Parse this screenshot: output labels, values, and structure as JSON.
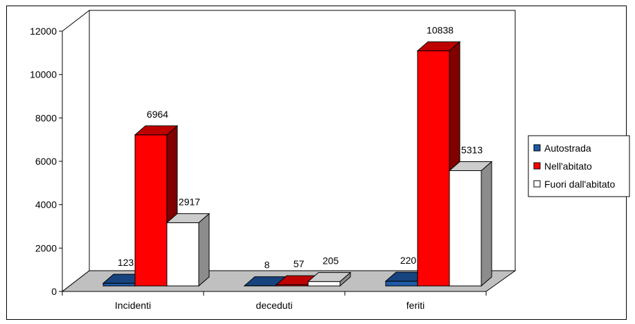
{
  "chart_data": {
    "type": "bar",
    "categories": [
      "Incidenti",
      "deceduti",
      "feriti"
    ],
    "series": [
      {
        "name": "Autostrada",
        "values": [
          123,
          8,
          220
        ],
        "color": "#1f5aa8"
      },
      {
        "name": "Nell'abitato",
        "values": [
          6964,
          57,
          10838
        ],
        "color": "#ff0000"
      },
      {
        "name": "Fuori dall'abitato",
        "values": [
          2917,
          205,
          5313
        ],
        "color": "#ffffff"
      }
    ],
    "y_ticks": [
      "0",
      "2000",
      "4000",
      "6000",
      "8000",
      "10000",
      "12000"
    ],
    "ylim": [
      0,
      12000
    ],
    "data_labels": true,
    "legend_position": "right",
    "style": "3d-clustered",
    "wall_color": "#ffffff",
    "floor_color": "#c0c0c0",
    "title": "",
    "xlabel": "",
    "ylabel": ""
  }
}
